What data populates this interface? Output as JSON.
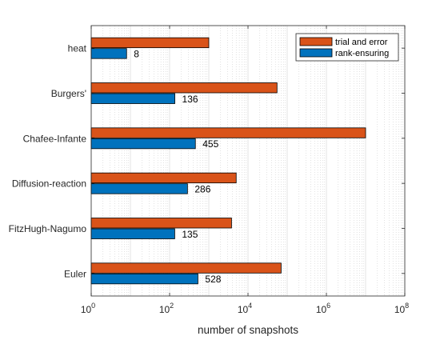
{
  "chart_data": {
    "type": "bar",
    "orientation": "horizontal",
    "xscale": "log",
    "xlim": [
      1,
      100000000
    ],
    "xticks": [
      1,
      100,
      10000,
      1000000,
      100000000
    ],
    "xtick_labels": [
      {
        "base": "10",
        "exp": "0"
      },
      {
        "base": "10",
        "exp": "2"
      },
      {
        "base": "10",
        "exp": "4"
      },
      {
        "base": "10",
        "exp": "6"
      },
      {
        "base": "10",
        "exp": "8"
      }
    ],
    "xlabel": "number of snapshots",
    "ylabel": "",
    "title": "",
    "grid": "x-major-and-minor",
    "legend_position": "top-right",
    "categories": [
      "heat",
      "Burgers'",
      "Chafee-Infante",
      "Diffusion-reaction",
      "FitzHugh-Nagumo",
      "Euler"
    ],
    "series": [
      {
        "name": "trial and error",
        "color": "#D95319",
        "values": [
          1000,
          55000,
          10000000,
          5000,
          3800,
          70000
        ]
      },
      {
        "name": "rank-ensuring",
        "color": "#0072BD",
        "values": [
          8,
          136,
          455,
          286,
          135,
          528
        ],
        "labels": [
          "8",
          "136",
          "455",
          "286",
          "135",
          "528"
        ]
      }
    ]
  }
}
